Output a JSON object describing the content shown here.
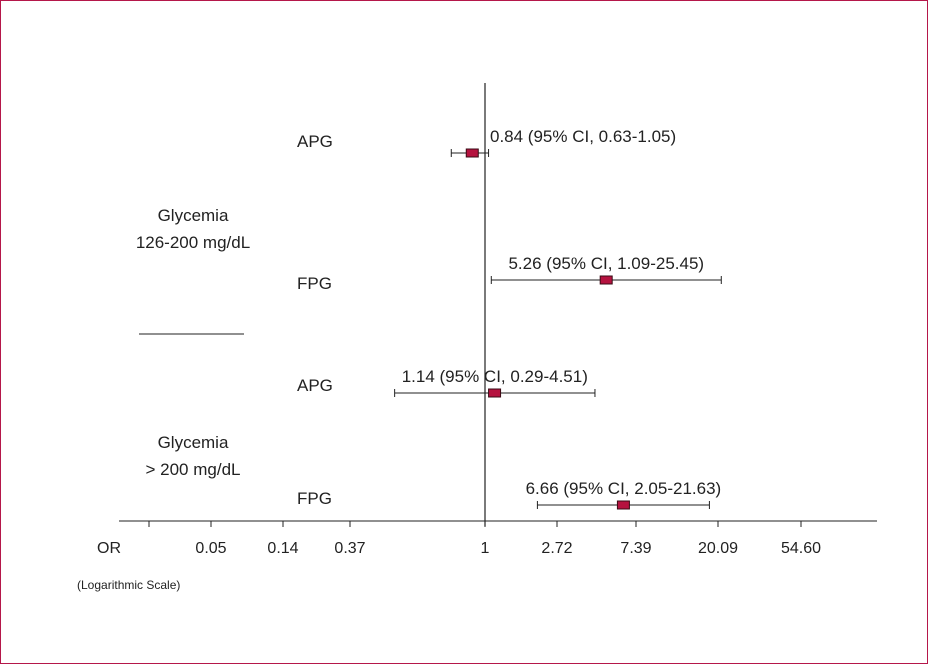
{
  "chart_data": {
    "type": "forest",
    "scale": "log",
    "xlabel": "OR",
    "axis_note": "(Logarithmic Scale)",
    "ticks": [
      "0.05",
      "0.14",
      "0.37",
      "1",
      "2.72",
      "7.39",
      "20.09",
      "54.60"
    ],
    "reference_line": 1,
    "groups": [
      {
        "label_lines": [
          "Glycemia",
          "126-200 mg/dL"
        ],
        "rows": [
          {
            "label": "APG",
            "or": 0.84,
            "ci_low": 0.63,
            "ci_high": 1.05,
            "annotation": "0.84 (95% CI, 0.63-1.05)"
          },
          {
            "label": "FPG",
            "or": 5.26,
            "ci_low": 1.09,
            "ci_high": 25.45,
            "annotation": "5.26 (95% CI, 1.09-25.45)"
          }
        ]
      },
      {
        "label_lines": [
          "Glycemia",
          "> 200 mg/dL"
        ],
        "rows": [
          {
            "label": "APG",
            "or": 1.14,
            "ci_low": 0.29,
            "ci_high": 4.51,
            "annotation": "1.14 (95% CI, 0.29-4.51)"
          },
          {
            "label": "FPG",
            "or": 6.66,
            "ci_low": 2.05,
            "ci_high": 21.63,
            "annotation": "6.66 (95% CI, 2.05-21.63)"
          }
        ]
      }
    ],
    "colors": {
      "marker": "#b5123f",
      "marker_border": "#3a0a14",
      "frame": "#b5174a",
      "text": "#222222"
    }
  }
}
